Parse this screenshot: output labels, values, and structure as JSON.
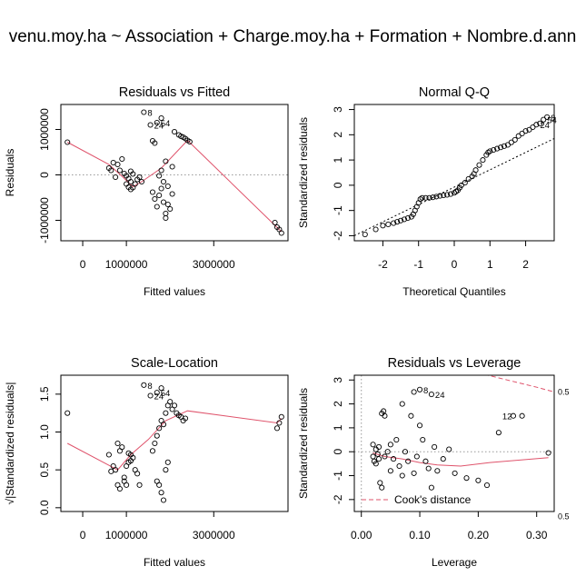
{
  "overall_title": "venu.moy.ha ~ Association + Charge.moy.ha + Formation + Nombre.d.ann",
  "colors": {
    "points": "#000000",
    "smooth": "#DF536B",
    "reference": "#999999",
    "cook": "#DF536B"
  },
  "chart_data": [
    {
      "type": "scatter",
      "title": "Residuals vs Fitted",
      "xlabel": "Fitted values",
      "ylabel": "Residuals",
      "xlim": [
        -500000,
        4700000
      ],
      "ylim": [
        -1450000,
        1550000
      ],
      "xticks": [
        0,
        1000000,
        3000000
      ],
      "xtick_labels": [
        "0",
        "1000000",
        "3000000"
      ],
      "yticks": [
        -1000000,
        0,
        1000000
      ],
      "ytick_labels": [
        "-1000000",
        "0",
        "1000000"
      ],
      "reference_line": {
        "y": 0,
        "style": "dotted"
      },
      "points": [
        [
          -350000,
          720000
        ],
        [
          1400000,
          1380000
        ],
        [
          1550000,
          1100000
        ],
        [
          1700000,
          1150000
        ],
        [
          1800000,
          1250000
        ],
        [
          700000,
          270000
        ],
        [
          800000,
          230000
        ],
        [
          900000,
          350000
        ],
        [
          850000,
          100000
        ],
        [
          950000,
          30000
        ],
        [
          1000000,
          -20000
        ],
        [
          1050000,
          -80000
        ],
        [
          1100000,
          -150000
        ],
        [
          1000000,
          -200000
        ],
        [
          1050000,
          -270000
        ],
        [
          1100000,
          -320000
        ],
        [
          1150000,
          -280000
        ],
        [
          1200000,
          -200000
        ],
        [
          1250000,
          -100000
        ],
        [
          1100000,
          80000
        ],
        [
          1150000,
          20000
        ],
        [
          1300000,
          -50000
        ],
        [
          1350000,
          -150000
        ],
        [
          600000,
          150000
        ],
        [
          650000,
          100000
        ],
        [
          750000,
          -50000
        ],
        [
          1600000,
          -380000
        ],
        [
          1650000,
          -530000
        ],
        [
          1700000,
          -700000
        ],
        [
          1750000,
          -450000
        ],
        [
          1800000,
          -300000
        ],
        [
          1850000,
          -600000
        ],
        [
          1900000,
          -850000
        ],
        [
          1950000,
          -650000
        ],
        [
          2000000,
          -750000
        ],
        [
          2050000,
          -420000
        ],
        [
          1900000,
          -950000
        ],
        [
          1600000,
          750000
        ],
        [
          1650000,
          700000
        ],
        [
          1800000,
          100000
        ],
        [
          1900000,
          300000
        ],
        [
          2050000,
          180000
        ],
        [
          2100000,
          950000
        ],
        [
          2200000,
          880000
        ],
        [
          2250000,
          850000
        ],
        [
          2300000,
          830000
        ],
        [
          2350000,
          800000
        ],
        [
          2400000,
          760000
        ],
        [
          2450000,
          730000
        ],
        [
          1750000,
          -20000
        ],
        [
          1850000,
          -150000
        ],
        [
          1950000,
          -250000
        ],
        [
          4400000,
          -1050000
        ],
        [
          4450000,
          -1150000
        ],
        [
          4500000,
          -1200000
        ],
        [
          4550000,
          -1280000
        ]
      ],
      "smooth": [
        [
          -350000,
          720000
        ],
        [
          600000,
          230000
        ],
        [
          900000,
          -30000
        ],
        [
          1150000,
          -260000
        ],
        [
          1350000,
          -150000
        ],
        [
          1800000,
          150000
        ],
        [
          2400000,
          760000
        ],
        [
          4550000,
          -1250000
        ]
      ],
      "labels": [
        {
          "text": "8",
          "x": 1400000,
          "y": 1380000
        },
        {
          "text": "54",
          "x": 1700000,
          "y": 1150000
        },
        {
          "text": "24",
          "x": 1550000,
          "y": 1100000
        }
      ]
    },
    {
      "type": "scatter",
      "title": "Normal Q-Q",
      "xlabel": "Theoretical Quantiles",
      "ylabel": "Standardized residuals",
      "xlim": [
        -2.8,
        2.8
      ],
      "ylim": [
        -2.2,
        3.2
      ],
      "xticks": [
        -2,
        -1,
        0,
        1,
        2
      ],
      "xtick_labels": [
        "-2",
        "-1",
        "0",
        "1",
        "2"
      ],
      "yticks": [
        -2,
        -1,
        0,
        1,
        2,
        3
      ],
      "ytick_labels": [
        "-2",
        "-1",
        "0",
        "1",
        "2",
        "3"
      ],
      "reference_line": {
        "points": [
          [
            -2.8,
            -2.0
          ],
          [
            2.8,
            1.85
          ]
        ],
        "style": "dotted"
      },
      "points": [
        [
          -2.5,
          -1.95
        ],
        [
          -2.2,
          -1.75
        ],
        [
          -2.0,
          -1.6
        ],
        [
          -1.85,
          -1.55
        ],
        [
          -1.7,
          -1.5
        ],
        [
          -1.6,
          -1.45
        ],
        [
          -1.5,
          -1.4
        ],
        [
          -1.4,
          -1.35
        ],
        [
          -1.3,
          -1.3
        ],
        [
          -1.2,
          -1.25
        ],
        [
          -1.15,
          -1.15
        ],
        [
          -1.1,
          -1.0
        ],
        [
          -1.05,
          -0.85
        ],
        [
          -1.0,
          -0.7
        ],
        [
          -0.95,
          -0.55
        ],
        [
          -0.9,
          -0.5
        ],
        [
          -0.8,
          -0.5
        ],
        [
          -0.7,
          -0.5
        ],
        [
          -0.6,
          -0.48
        ],
        [
          -0.5,
          -0.45
        ],
        [
          -0.4,
          -0.42
        ],
        [
          -0.3,
          -0.4
        ],
        [
          -0.2,
          -0.38
        ],
        [
          -0.1,
          -0.35
        ],
        [
          0.0,
          -0.3
        ],
        [
          0.05,
          -0.25
        ],
        [
          0.1,
          -0.2
        ],
        [
          0.15,
          -0.1
        ],
        [
          0.2,
          0.0
        ],
        [
          0.3,
          0.1
        ],
        [
          0.4,
          0.25
        ],
        [
          0.5,
          0.35
        ],
        [
          0.55,
          0.45
        ],
        [
          0.6,
          0.6
        ],
        [
          0.7,
          0.8
        ],
        [
          0.8,
          1.0
        ],
        [
          0.9,
          1.2
        ],
        [
          0.95,
          1.3
        ],
        [
          1.0,
          1.35
        ],
        [
          1.1,
          1.4
        ],
        [
          1.2,
          1.45
        ],
        [
          1.3,
          1.5
        ],
        [
          1.4,
          1.55
        ],
        [
          1.5,
          1.6
        ],
        [
          1.6,
          1.7
        ],
        [
          1.7,
          1.8
        ],
        [
          1.8,
          1.95
        ],
        [
          1.9,
          2.05
        ],
        [
          2.0,
          2.15
        ],
        [
          2.1,
          2.2
        ],
        [
          2.2,
          2.3
        ],
        [
          2.3,
          2.4
        ],
        [
          2.4,
          2.45
        ],
        [
          2.5,
          2.6
        ],
        [
          2.6,
          2.7
        ]
      ],
      "labels": [
        {
          "text": "8",
          "x": 2.6,
          "y": 2.7
        },
        {
          "text": "54",
          "x": 2.5,
          "y": 2.6
        },
        {
          "text": "24",
          "x": 2.3,
          "y": 2.4
        }
      ]
    },
    {
      "type": "scatter",
      "title": "Scale-Location",
      "xlabel": "Fitted values",
      "ylabel": "√|Standardized residuals|",
      "xlim": [
        -500000,
        4700000
      ],
      "ylim": [
        -0.05,
        1.75
      ],
      "xticks": [
        0,
        1000000,
        3000000
      ],
      "xtick_labels": [
        "0",
        "1000000",
        "3000000"
      ],
      "yticks": [
        0.0,
        0.5,
        1.0,
        1.5
      ],
      "ytick_labels": [
        "0.0",
        "0.5",
        "1.0",
        "1.5"
      ],
      "points": [
        [
          -350000,
          1.25
        ],
        [
          1400000,
          1.62
        ],
        [
          1550000,
          1.48
        ],
        [
          1700000,
          1.52
        ],
        [
          1800000,
          1.58
        ],
        [
          700000,
          0.55
        ],
        [
          750000,
          0.5
        ],
        [
          800000,
          0.3
        ],
        [
          850000,
          0.25
        ],
        [
          950000,
          0.4
        ],
        [
          1000000,
          0.55
        ],
        [
          1050000,
          0.6
        ],
        [
          1100000,
          0.62
        ],
        [
          1100000,
          0.7
        ],
        [
          1050000,
          0.72
        ],
        [
          1150000,
          0.66
        ],
        [
          1200000,
          0.5
        ],
        [
          1250000,
          0.45
        ],
        [
          1300000,
          0.3
        ],
        [
          1000000,
          0.3
        ],
        [
          950000,
          0.35
        ],
        [
          800000,
          0.85
        ],
        [
          850000,
          0.75
        ],
        [
          900000,
          0.8
        ],
        [
          600000,
          0.7
        ],
        [
          650000,
          0.48
        ],
        [
          1600000,
          0.75
        ],
        [
          1650000,
          0.85
        ],
        [
          1700000,
          0.95
        ],
        [
          1750000,
          1.05
        ],
        [
          1800000,
          1.15
        ],
        [
          1850000,
          1.1
        ],
        [
          1900000,
          1.25
        ],
        [
          1950000,
          1.35
        ],
        [
          2000000,
          1.4
        ],
        [
          2050000,
          1.3
        ],
        [
          2100000,
          1.35
        ],
        [
          2150000,
          1.25
        ],
        [
          2200000,
          1.22
        ],
        [
          2250000,
          1.2
        ],
        [
          2300000,
          1.15
        ],
        [
          2350000,
          1.18
        ],
        [
          1700000,
          0.35
        ],
        [
          1750000,
          0.3
        ],
        [
          1800000,
          0.2
        ],
        [
          1850000,
          0.1
        ],
        [
          1900000,
          0.5
        ],
        [
          1950000,
          0.6
        ],
        [
          4450000,
          1.05
        ],
        [
          4500000,
          1.12
        ],
        [
          4550000,
          1.2
        ]
      ],
      "smooth": [
        [
          -350000,
          0.85
        ],
        [
          800000,
          0.5
        ],
        [
          1100000,
          0.7
        ],
        [
          1500000,
          0.9
        ],
        [
          1900000,
          1.15
        ],
        [
          2400000,
          1.28
        ],
        [
          4450000,
          1.12
        ],
        [
          4550000,
          1.18
        ]
      ],
      "labels": [
        {
          "text": "8",
          "x": 1400000,
          "y": 1.62
        },
        {
          "text": "54",
          "x": 1700000,
          "y": 1.52
        },
        {
          "text": "24",
          "x": 1550000,
          "y": 1.48
        }
      ]
    },
    {
      "type": "scatter",
      "title": "Residuals vs Leverage",
      "xlabel": "Leverage",
      "ylabel": "Standardized residuals",
      "xlim": [
        -0.012,
        0.33
      ],
      "ylim": [
        -2.5,
        3.2
      ],
      "xticks": [
        0.0,
        0.1,
        0.2,
        0.3
      ],
      "xtick_labels": [
        "0.00",
        "0.10",
        "0.20",
        "0.30"
      ],
      "yticks": [
        -2,
        -1,
        0,
        1,
        2,
        3
      ],
      "ytick_labels": [
        "-2",
        "-1",
        "0",
        "1",
        "2",
        "3"
      ],
      "reference_line": {
        "y": 0,
        "style": "dotted"
      },
      "points": [
        [
          0.02,
          0.3
        ],
        [
          0.02,
          -0.2
        ],
        [
          0.022,
          -0.4
        ],
        [
          0.025,
          -0.5
        ],
        [
          0.025,
          0.1
        ],
        [
          0.028,
          -0.1
        ],
        [
          0.03,
          -0.3
        ],
        [
          0.03,
          0.2
        ],
        [
          0.032,
          -1.3
        ],
        [
          0.035,
          -1.5
        ],
        [
          0.035,
          1.6
        ],
        [
          0.038,
          1.7
        ],
        [
          0.04,
          1.5
        ],
        [
          0.04,
          -0.2
        ],
        [
          0.045,
          0.0
        ],
        [
          0.05,
          0.3
        ],
        [
          0.05,
          -0.8
        ],
        [
          0.055,
          -0.3
        ],
        [
          0.06,
          0.5
        ],
        [
          0.065,
          -0.6
        ],
        [
          0.07,
          2.0
        ],
        [
          0.07,
          -1.0
        ],
        [
          0.075,
          0.0
        ],
        [
          0.08,
          -0.4
        ],
        [
          0.085,
          1.5
        ],
        [
          0.09,
          2.5
        ],
        [
          0.09,
          -0.9
        ],
        [
          0.095,
          -0.2
        ],
        [
          0.1,
          2.6
        ],
        [
          0.1,
          1.1
        ],
        [
          0.105,
          0.5
        ],
        [
          0.11,
          -0.4
        ],
        [
          0.115,
          -0.7
        ],
        [
          0.12,
          -1.5
        ],
        [
          0.12,
          2.4
        ],
        [
          0.125,
          0.2
        ],
        [
          0.13,
          -0.8
        ],
        [
          0.14,
          -0.3
        ],
        [
          0.15,
          0.1
        ],
        [
          0.16,
          -0.9
        ],
        [
          0.18,
          -1.1
        ],
        [
          0.2,
          -1.2
        ],
        [
          0.215,
          -1.4
        ],
        [
          0.235,
          0.8
        ],
        [
          0.26,
          1.5
        ],
        [
          0.275,
          1.5
        ],
        [
          0.32,
          -0.05
        ]
      ],
      "smooth": [
        [
          0.02,
          -0.05
        ],
        [
          0.04,
          -0.2
        ],
        [
          0.07,
          -0.3
        ],
        [
          0.1,
          -0.45
        ],
        [
          0.13,
          -0.55
        ],
        [
          0.17,
          -0.6
        ],
        [
          0.22,
          -0.45
        ],
        [
          0.32,
          -0.25
        ]
      ],
      "cook_contours": [
        {
          "points": [
            [
              0.15,
              3.6
            ],
            [
              0.2,
              3.3
            ],
            [
              0.25,
              3.0
            ],
            [
              0.3,
              2.7
            ],
            [
              0.33,
              2.5
            ]
          ],
          "label": "0.5"
        },
        {
          "points": [
            [
              0.3,
              -2.6
            ],
            [
              0.33,
              -2.7
            ]
          ],
          "label": "0.5"
        }
      ],
      "legend": "Cook's distance",
      "labels": [
        {
          "text": "8",
          "x": 0.1,
          "y": 2.6
        },
        {
          "text": "24",
          "x": 0.12,
          "y": 2.4
        },
        {
          "text": "12",
          "x": 0.235,
          "y": 1.5
        }
      ]
    }
  ]
}
